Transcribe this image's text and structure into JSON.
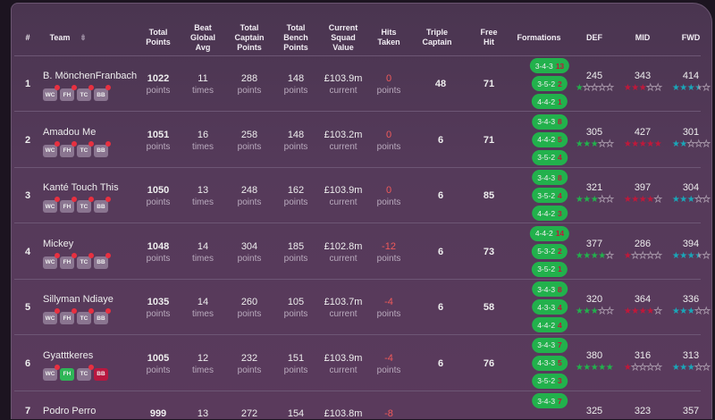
{
  "headers": {
    "rank": "#",
    "team": "Team",
    "total_points": "Total Points",
    "beat_avg": "Beat Global Avg",
    "captain": "Total Captain Points",
    "bench": "Total Bench Points",
    "value": "Current Squad Value",
    "hits": "Hits Taken",
    "triple_captain": "Triple Captain",
    "free_hit": "Free Hit",
    "formations": "Formations",
    "def": "DEF",
    "mid": "MID",
    "fwd": "FWD"
  },
  "units": {
    "points": "points",
    "times": "times",
    "current": "current"
  },
  "chip_labels": [
    "WC",
    "FH",
    "TC",
    "BB"
  ],
  "colors": {
    "def_star": "#22b14c",
    "mid_star": "#c0183a",
    "fwd_star": "#1aa6b8",
    "formation_bg": "#22b14c",
    "negative": "#f05a5a"
  },
  "rows": [
    {
      "rank": "1",
      "team": "B. MönchenFranbach",
      "total": "1022",
      "beat": "11",
      "captain": "288",
      "bench": "148",
      "value": "£103.9m",
      "hits": "0",
      "tc": "48",
      "fh": "71",
      "formations": [
        [
          "3-4-3",
          "13"
        ],
        [
          "3-5-2",
          "2"
        ],
        [
          "4-4-2",
          "1"
        ]
      ],
      "def": "245",
      "mid": "343",
      "fwd": "414",
      "def_stars": 1,
      "mid_stars": 3,
      "fwd_stars": 3.5,
      "chips": [
        "used",
        "used",
        "used",
        "used"
      ]
    },
    {
      "rank": "2",
      "team": "Amadou Me",
      "total": "1051",
      "beat": "16",
      "captain": "258",
      "bench": "148",
      "value": "£103.2m",
      "hits": "0",
      "tc": "6",
      "fh": "71",
      "formations": [
        [
          "3-4-3",
          "8"
        ],
        [
          "4-4-2",
          "5"
        ],
        [
          "3-5-2",
          "4"
        ]
      ],
      "def": "305",
      "mid": "427",
      "fwd": "301",
      "def_stars": 3,
      "mid_stars": 5,
      "fwd_stars": 2,
      "chips": [
        "used",
        "used",
        "used",
        "used"
      ]
    },
    {
      "rank": "3",
      "team": "Kanté Touch This",
      "total": "1050",
      "beat": "13",
      "captain": "248",
      "bench": "162",
      "value": "£103.9m",
      "hits": "0",
      "tc": "6",
      "fh": "85",
      "formations": [
        [
          "3-4-3",
          "8"
        ],
        [
          "3-5-2",
          "4"
        ],
        [
          "4-4-2",
          "3"
        ]
      ],
      "def": "321",
      "mid": "397",
      "fwd": "304",
      "def_stars": 3,
      "mid_stars": 4,
      "fwd_stars": 3,
      "chips": [
        "used",
        "used",
        "used",
        "used"
      ]
    },
    {
      "rank": "4",
      "team": "Mickey",
      "total": "1048",
      "beat": "14",
      "captain": "304",
      "bench": "185",
      "value": "£102.8m",
      "hits": "-12",
      "tc": "6",
      "fh": "73",
      "formations": [
        [
          "4-4-2",
          "14"
        ],
        [
          "5-3-2",
          "2"
        ],
        [
          "3-5-2",
          "1"
        ]
      ],
      "def": "377",
      "mid": "286",
      "fwd": "394",
      "def_stars": 4,
      "mid_stars": 1,
      "fwd_stars": 3.5,
      "chips": [
        "used",
        "used",
        "used",
        "used"
      ]
    },
    {
      "rank": "5",
      "team": "Sillyman Ndiaye",
      "total": "1035",
      "beat": "14",
      "captain": "260",
      "bench": "105",
      "value": "£103.7m",
      "hits": "-4",
      "tc": "6",
      "fh": "58",
      "formations": [
        [
          "3-4-3",
          "8"
        ],
        [
          "4-3-3",
          "4"
        ],
        [
          "4-4-2",
          "4"
        ]
      ],
      "def": "320",
      "mid": "364",
      "fwd": "336",
      "def_stars": 3,
      "mid_stars": 4,
      "fwd_stars": 3,
      "chips": [
        "used",
        "used",
        "used",
        "used"
      ]
    },
    {
      "rank": "6",
      "team": "Gyatttkeres",
      "total": "1005",
      "beat": "12",
      "captain": "232",
      "bench": "151",
      "value": "£103.9m",
      "hits": "-4",
      "tc": "6",
      "fh": "76",
      "formations": [
        [
          "3-4-3",
          "7"
        ],
        [
          "4-3-3",
          "5"
        ],
        [
          "3-5-2",
          "3"
        ]
      ],
      "def": "380",
      "mid": "316",
      "fwd": "313",
      "def_stars": 5,
      "mid_stars": 1,
      "fwd_stars": 3,
      "chips": [
        "used",
        "fh-active",
        "used",
        "bb-active"
      ]
    },
    {
      "rank": "7",
      "team": "Podro Perro",
      "total": "999",
      "beat": "13",
      "captain": "272",
      "bench": "154",
      "value": "£103.8m",
      "hits": "-8",
      "tc": "",
      "fh": "",
      "formations": [
        [
          "3-4-3",
          "7"
        ]
      ],
      "def": "325",
      "mid": "323",
      "fwd": "357",
      "def_stars": 0,
      "mid_stars": 0,
      "fwd_stars": 0,
      "chips": []
    }
  ]
}
